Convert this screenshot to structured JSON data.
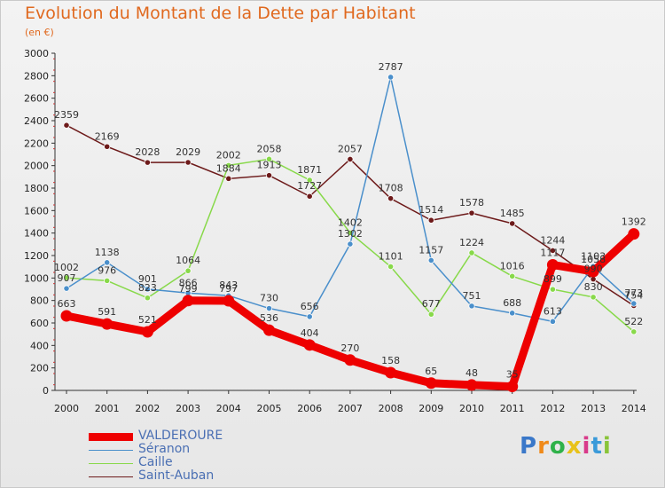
{
  "header": {
    "title": "Evolution du Montant de la Dette par Habitant",
    "subtitle": "(en €)"
  },
  "brand": {
    "text": "Proxiti"
  },
  "chart_data": {
    "type": "line",
    "title": "Evolution du Montant de la Dette par Habitant",
    "subtitle": "(en €)",
    "categories": [
      "2000",
      "2001",
      "2002",
      "2003",
      "2004",
      "2005",
      "2006",
      "2007",
      "2008",
      "2009",
      "2010",
      "2011",
      "2012",
      "2013",
      "2014"
    ],
    "ylim": [
      0,
      3000
    ],
    "yticks": [
      0,
      200,
      400,
      600,
      800,
      1000,
      1200,
      1400,
      1600,
      1800,
      2000,
      2200,
      2400,
      2600,
      2800,
      3000
    ],
    "grid": false,
    "legend_position": "bottom-left",
    "series": [
      {
        "name": "VALDEROURE",
        "color": "#ee0000",
        "values": [
          663,
          591,
          521,
          799,
          797,
          536,
          404,
          270,
          158,
          65,
          48,
          35,
          1117,
          1058,
          1392
        ]
      },
      {
        "name": "Séranon",
        "color": "#4a8fcb",
        "values": [
          907,
          1138,
          901,
          866,
          843,
          730,
          656,
          1302,
          2787,
          1157,
          751,
          688,
          613,
          1103,
          773
        ]
      },
      {
        "name": "Caille",
        "color": "#88d94a",
        "values": [
          1002,
          976,
          823,
          1064,
          2002,
          2058,
          1871,
          1402,
          1101,
          677,
          1224,
          1016,
          899,
          830,
          522
        ]
      },
      {
        "name": "Saint-Auban",
        "color": "#6d1a1a",
        "values": [
          2359,
          2169,
          2028,
          2029,
          1884,
          1913,
          1727,
          2057,
          1708,
          1514,
          1578,
          1485,
          1244,
          990,
          754
        ]
      }
    ]
  }
}
